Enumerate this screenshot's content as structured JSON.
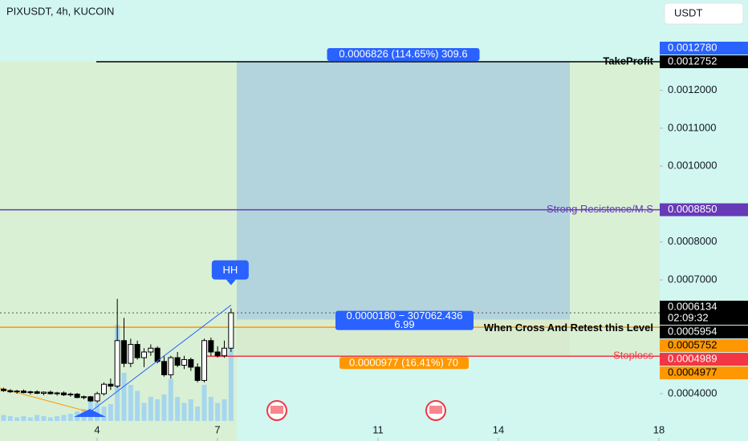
{
  "chart_data": {
    "type": "candlestick",
    "title": "PIXUSDT, 4h, KUCOIN",
    "currency": "USDT",
    "xlim": [
      1.58,
      18.02
    ],
    "xticks": [
      4,
      7,
      11,
      14,
      18
    ],
    "ylim": [
      0.0002753,
      0.001438
    ],
    "yticks": [
      {
        "value": 0.0004,
        "label": "0.0004000"
      },
      {
        "value": 0.0007,
        "label": "0.0007000"
      },
      {
        "value": 0.0008,
        "label": "0.0008000"
      },
      {
        "value": 0.001,
        "label": "0.0010000"
      },
      {
        "value": 0.0011,
        "label": "0.0011000"
      },
      {
        "value": 0.0012,
        "label": "0.0012000"
      }
    ],
    "x": [
      1.67,
      1.837,
      2.003,
      2.17,
      2.337,
      2.503,
      2.67,
      2.837,
      3.003,
      3.17,
      3.337,
      3.503,
      3.67,
      3.837,
      4.003,
      4.17,
      4.337,
      4.503,
      4.67,
      4.837,
      5.003,
      5.17,
      5.337,
      5.503,
      5.67,
      5.837,
      6.003,
      6.17,
      6.337,
      6.503,
      6.67,
      6.837,
      7.003,
      7.17,
      7.337
    ],
    "open": [
      0.000412,
      0.000408,
      0.000405,
      0.000407,
      0.000403,
      0.000405,
      0.000401,
      0.000404,
      0.0004,
      0.000402,
      0.000397,
      0.000399,
      0.00039,
      0.000392,
      0.000381,
      0.0004,
      0.000425,
      0.00042,
      0.00054,
      0.00048,
      0.00053,
      0.000495,
      0.00051,
      0.00052,
      0.000485,
      0.00045,
      0.000495,
      0.000475,
      0.00049,
      0.00047,
      0.000435,
      0.00054,
      0.00051,
      0.0005,
      0.00052
    ],
    "high": [
      0.000416,
      0.000412,
      0.00041,
      0.000411,
      0.000408,
      0.000409,
      0.000406,
      0.000408,
      0.000405,
      0.000406,
      0.000403,
      0.000402,
      0.000395,
      0.000394,
      0.000405,
      0.00043,
      0.00044,
      0.00065,
      0.0006,
      0.000545,
      0.00054,
      0.00052,
      0.00053,
      0.000525,
      0.0005,
      0.0005,
      0.00051,
      0.0005,
      0.000495,
      0.00048,
      0.000545,
      0.000548,
      0.000525,
      0.00054,
      0.000625
    ],
    "low": [
      0.000405,
      0.000402,
      0.0004,
      0.000401,
      0.000398,
      0.000399,
      0.000396,
      0.000398,
      0.000395,
      0.000394,
      0.000392,
      0.000388,
      0.000385,
      0.000378,
      0.000376,
      0.000395,
      0.00041,
      0.000415,
      0.00047,
      0.00047,
      0.00049,
      0.00047,
      0.0005,
      0.00048,
      0.000445,
      0.00044,
      0.00047,
      0.000465,
      0.00046,
      0.00043,
      0.00043,
      0.0005,
      0.000495,
      0.000495,
      0.00051
    ],
    "close": [
      0.000408,
      0.000405,
      0.000407,
      0.000403,
      0.000405,
      0.000401,
      0.000404,
      0.0004,
      0.000402,
      0.000397,
      0.000399,
      0.00039,
      0.000392,
      0.000381,
      0.0004,
      0.000425,
      0.00042,
      0.00054,
      0.00048,
      0.00053,
      0.000495,
      0.00051,
      0.00052,
      0.000485,
      0.00045,
      0.000495,
      0.000475,
      0.00049,
      0.00047,
      0.000435,
      0.00054,
      0.00051,
      0.0005,
      0.00052,
      0.0006134
    ],
    "volume": [
      5,
      4,
      3,
      4,
      3,
      5,
      4,
      3,
      4,
      5,
      6,
      8,
      10,
      18,
      15,
      12,
      14,
      80,
      40,
      30,
      25,
      15,
      20,
      18,
      22,
      35,
      20,
      15,
      18,
      12,
      30,
      20,
      15,
      18,
      85
    ],
    "volume_lim": [
      0,
      100
    ],
    "up_color": "#ffffff",
    "down_color": "#000000",
    "volume_color": "#90caf9",
    "price_labels": [
      {
        "value": 0.001278,
        "label": "0.0012780",
        "color": "#2962ff",
        "label_text_color": "#ffffff"
      },
      {
        "value": 0.0012752,
        "label": "0.0012752",
        "color": "#000000",
        "label_text_color": "#ffffff",
        "text": "TakeProfit"
      },
      {
        "value": 0.000885,
        "label": "0.0008850",
        "color": "#673ab7",
        "label_text_color": "#ffffff",
        "text": "Strong Resistence/M.S"
      },
      {
        "value": 0.0006134,
        "label": "0.0006134",
        "color": "#000000",
        "label_text_color": "#ffffff",
        "sub": "02:09:32"
      },
      {
        "value": 0.0005954,
        "label": "0.0005954",
        "color": "#000000",
        "label_text_color": "#ffffff",
        "text": "When Cross And Retest this Level"
      },
      {
        "value": 0.0005752,
        "label": "0.0005752",
        "color": "#ff9800",
        "label_text_color": "#000000"
      },
      {
        "value": 0.0004989,
        "label": "0.0004989",
        "color": "#f23645",
        "label_text_color": "#ffffff",
        "text": "Stoploss"
      },
      {
        "value": 0.0004977,
        "label": "0.0004977",
        "color": "#ff9800",
        "label_text_color": "#000000"
      }
    ],
    "position": {
      "start": 7.48,
      "end": 15.78,
      "target_label": "0.0006826 (114.65%) 309.6",
      "entry_label": [
        "0.0000180 − 307062.436",
        "6.99"
      ],
      "stop_label": "0.0000977 (16.41%) 70"
    },
    "marker": "HH"
  }
}
